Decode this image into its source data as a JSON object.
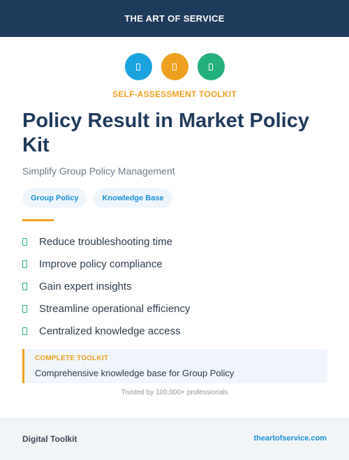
{
  "header": {
    "brand": "THE ART OF SERVICE"
  },
  "icons": [
    {
      "name": "document-icon",
      "color": "#1ba3e0"
    },
    {
      "name": "document-icon",
      "color": "#f0a020"
    },
    {
      "name": "document-icon",
      "color": "#22b07d"
    }
  ],
  "eyebrow": "SELF-ASSESSMENT TOOLKIT",
  "title": "Policy Result in Market Policy Kit",
  "subtitle": "Simplify Group Policy Management",
  "tags": [
    "Group Policy",
    "Knowledge Base"
  ],
  "benefits": [
    "Reduce troubleshooting time",
    "Improve policy compliance",
    "Gain expert insights",
    "Streamline operational efficiency",
    "Centralized knowledge access"
  ],
  "callout": {
    "label": "COMPLETE TOOLKIT",
    "text": "Comprehensive knowledge base for Group Policy"
  },
  "trusted": "Trusted by 100,000+ professionals",
  "footer": {
    "left": "Digital Toolkit",
    "right": "theartofservice.com"
  }
}
